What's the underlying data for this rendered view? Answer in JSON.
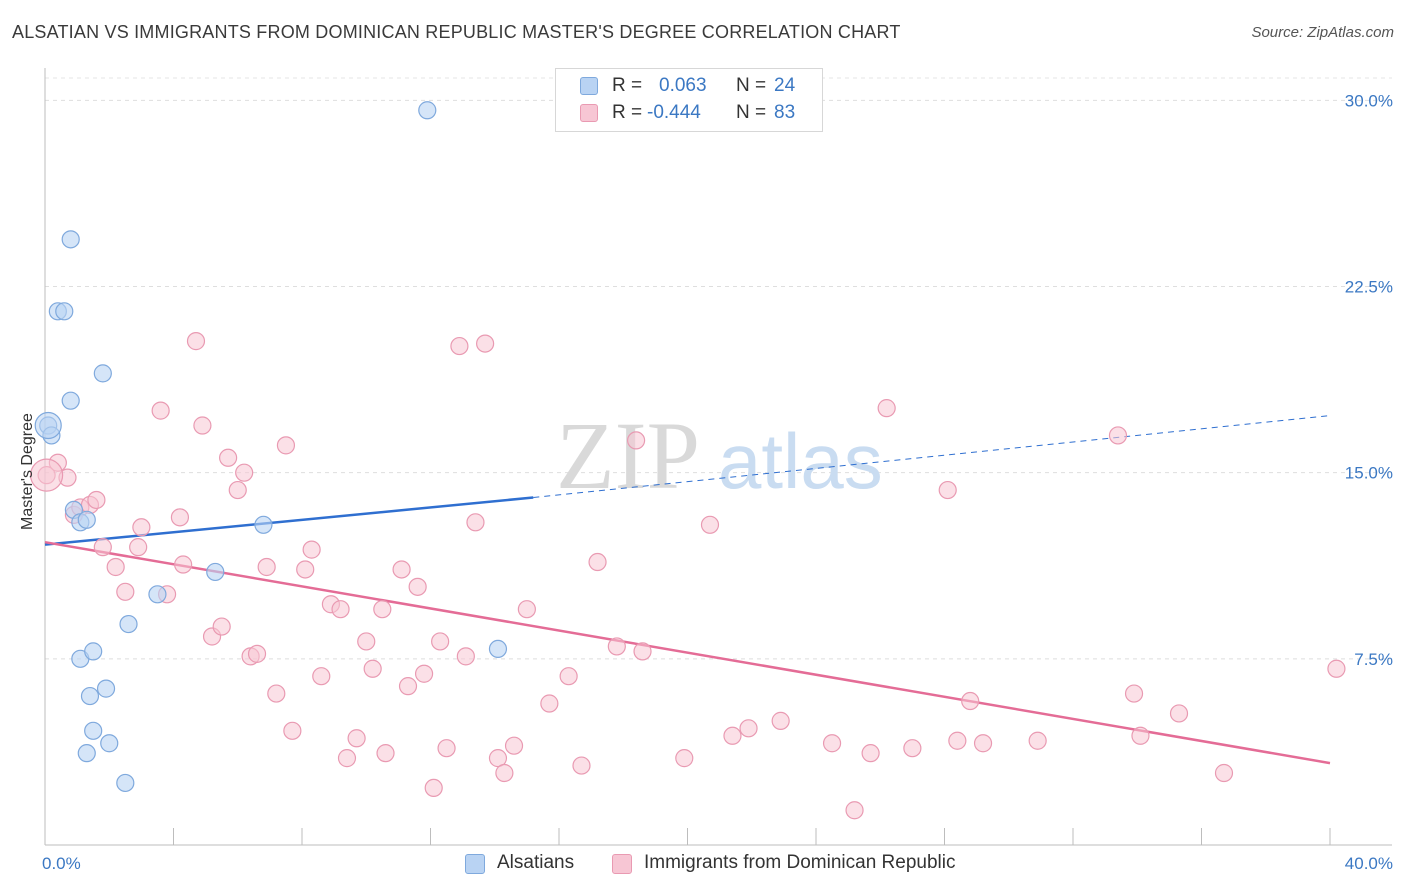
{
  "title": "ALSATIAN VS IMMIGRANTS FROM DOMINICAN REPUBLIC MASTER'S DEGREE CORRELATION CHART",
  "source": "Source: ZipAtlas.com",
  "watermark": {
    "part1": "ZIP",
    "part2": "atlas"
  },
  "colors": {
    "blue_fill": "#b9d3f3",
    "blue_stroke": "#7fa9dd",
    "blue_line": "#2f6fd0",
    "pink_fill": "#f7c6d4",
    "pink_stroke": "#e99ab2",
    "pink_line": "#e46c96",
    "tick": "#3b78c3"
  },
  "stats": {
    "r_label": "R =",
    "n_label": "N =",
    "rows": [
      {
        "r": "0.063",
        "n": "24",
        "swatch": "blue"
      },
      {
        "r": "-0.444",
        "n": "83",
        "swatch": "pink"
      }
    ]
  },
  "legend": {
    "items": [
      {
        "label": "Alsatians",
        "swatch": "blue"
      },
      {
        "label": "Immigrants from Dominican Republic",
        "swatch": "pink"
      }
    ]
  },
  "chart_data": {
    "type": "scatter",
    "title": "ALSATIAN VS IMMIGRANTS FROM DOMINICAN REPUBLIC MASTER'S DEGREE CORRELATION CHART",
    "xlabel": "",
    "ylabel": "Master's Degree",
    "xlim": [
      0,
      40
    ],
    "ylim": [
      0,
      30
    ],
    "x_tick_labels": [
      "0.0%",
      "40.0%"
    ],
    "y_ticks": [
      7.5,
      15.0,
      22.5,
      30.0
    ],
    "y_tick_labels": [
      "7.5%",
      "15.0%",
      "22.5%",
      "30.0%"
    ],
    "grid": true,
    "legend_position": "bottom-center",
    "series": [
      {
        "name": "Alsatians",
        "color": "blue",
        "r": 0.063,
        "n": 24,
        "trend": {
          "x0": 0,
          "y0": 12.1,
          "x1": 15.2,
          "y1": 14.0,
          "dashed_to_x": 40,
          "dashed_to_y": 17.3
        },
        "points": [
          [
            0.1,
            16.9
          ],
          [
            0.2,
            16.5
          ],
          [
            0.4,
            21.5
          ],
          [
            0.6,
            21.5
          ],
          [
            0.8,
            24.4
          ],
          [
            0.8,
            17.9
          ],
          [
            0.9,
            13.5
          ],
          [
            1.1,
            13.0
          ],
          [
            1.3,
            13.1
          ],
          [
            1.1,
            7.5
          ],
          [
            1.8,
            19.0
          ],
          [
            1.4,
            6.0
          ],
          [
            1.5,
            7.8
          ],
          [
            1.9,
            6.3
          ],
          [
            1.5,
            4.6
          ],
          [
            1.3,
            3.7
          ],
          [
            2.0,
            4.1
          ],
          [
            2.5,
            2.5
          ],
          [
            2.6,
            8.9
          ],
          [
            3.5,
            10.1
          ],
          [
            5.3,
            11.0
          ],
          [
            6.8,
            12.9
          ],
          [
            14.1,
            7.9
          ],
          [
            11.9,
            29.6
          ]
        ]
      },
      {
        "name": "Immigrants from Dominican Republic",
        "color": "pink",
        "r": -0.444,
        "n": 83,
        "trend": {
          "x0": 0,
          "y0": 12.2,
          "x1": 40,
          "y1": 3.3
        },
        "points": [
          [
            0.05,
            14.9
          ],
          [
            0.4,
            15.4
          ],
          [
            0.7,
            14.8
          ],
          [
            0.9,
            13.3
          ],
          [
            1.1,
            13.6
          ],
          [
            1.4,
            13.7
          ],
          [
            1.6,
            13.9
          ],
          [
            1.8,
            12.0
          ],
          [
            2.2,
            11.2
          ],
          [
            2.5,
            10.2
          ],
          [
            2.9,
            12.0
          ],
          [
            3.0,
            12.8
          ],
          [
            3.6,
            17.5
          ],
          [
            3.8,
            10.1
          ],
          [
            4.2,
            13.2
          ],
          [
            4.3,
            11.3
          ],
          [
            4.7,
            20.3
          ],
          [
            4.9,
            16.9
          ],
          [
            5.2,
            8.4
          ],
          [
            5.5,
            8.8
          ],
          [
            5.7,
            15.6
          ],
          [
            6.0,
            14.3
          ],
          [
            6.2,
            15.0
          ],
          [
            6.4,
            7.6
          ],
          [
            6.6,
            7.7
          ],
          [
            6.9,
            11.2
          ],
          [
            7.2,
            6.1
          ],
          [
            7.5,
            16.1
          ],
          [
            7.7,
            4.6
          ],
          [
            8.1,
            11.1
          ],
          [
            8.3,
            11.9
          ],
          [
            8.6,
            6.8
          ],
          [
            8.9,
            9.7
          ],
          [
            9.2,
            9.5
          ],
          [
            9.4,
            3.5
          ],
          [
            9.7,
            4.3
          ],
          [
            10.0,
            8.2
          ],
          [
            10.2,
            7.1
          ],
          [
            10.5,
            9.5
          ],
          [
            10.6,
            3.7
          ],
          [
            11.1,
            11.1
          ],
          [
            11.3,
            6.4
          ],
          [
            11.6,
            10.4
          ],
          [
            11.8,
            6.9
          ],
          [
            12.1,
            2.3
          ],
          [
            12.3,
            8.2
          ],
          [
            12.5,
            3.9
          ],
          [
            12.9,
            20.1
          ],
          [
            13.1,
            7.6
          ],
          [
            13.4,
            13.0
          ],
          [
            13.7,
            20.2
          ],
          [
            14.1,
            3.5
          ],
          [
            14.3,
            2.9
          ],
          [
            14.6,
            4.0
          ],
          [
            15.0,
            9.5
          ],
          [
            15.7,
            5.7
          ],
          [
            16.3,
            6.8
          ],
          [
            16.7,
            3.2
          ],
          [
            17.2,
            11.4
          ],
          [
            17.8,
            8.0
          ],
          [
            18.4,
            16.3
          ],
          [
            18.6,
            7.8
          ],
          [
            19.9,
            3.5
          ],
          [
            20.7,
            12.9
          ],
          [
            21.4,
            4.4
          ],
          [
            21.9,
            4.7
          ],
          [
            22.9,
            5.0
          ],
          [
            24.5,
            4.1
          ],
          [
            25.2,
            1.4
          ],
          [
            25.7,
            3.7
          ],
          [
            26.2,
            17.6
          ],
          [
            27.0,
            3.9
          ],
          [
            28.1,
            14.3
          ],
          [
            28.4,
            4.2
          ],
          [
            28.8,
            5.8
          ],
          [
            29.2,
            4.1
          ],
          [
            30.9,
            4.2
          ],
          [
            33.4,
            16.5
          ],
          [
            33.9,
            6.1
          ],
          [
            34.1,
            4.4
          ],
          [
            35.3,
            5.3
          ],
          [
            36.7,
            2.9
          ],
          [
            40.2,
            7.1
          ]
        ]
      }
    ]
  }
}
